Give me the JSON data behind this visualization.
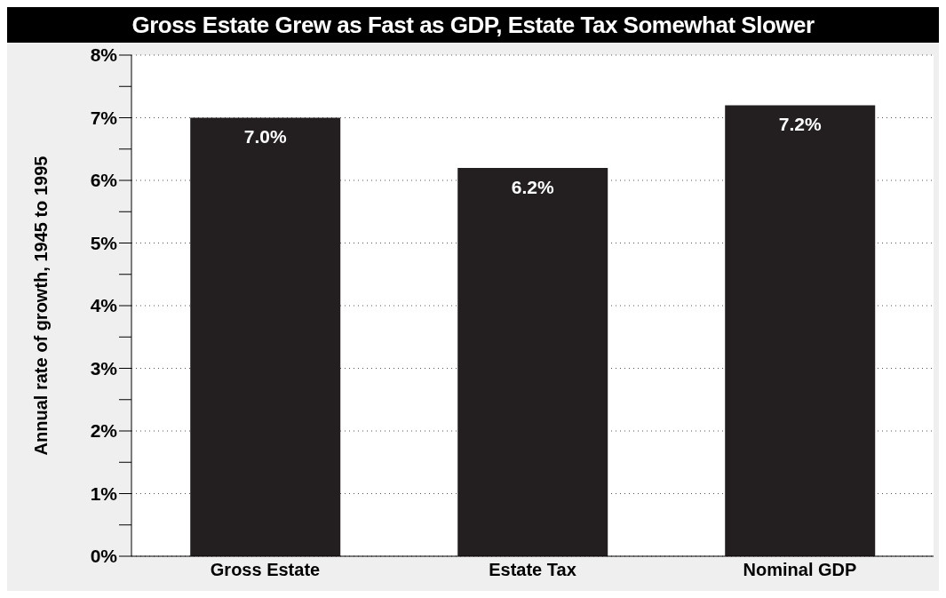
{
  "chart_data": {
    "type": "bar",
    "title": "Gross Estate Grew as Fast as GDP, Estate Tax Somewhat Slower",
    "ylabel": "Annual rate of growth, 1945 to 1995",
    "categories": [
      "Gross Estate",
      "Estate Tax",
      "Nominal GDP"
    ],
    "values": [
      7.0,
      6.2,
      7.2
    ],
    "color": "#231f20",
    "value_labels": [
      "7.0%",
      "6.2%",
      "7.2%"
    ],
    "ylim": [
      0,
      8
    ],
    "yticks": [
      {
        "value": 0,
        "label": "0%"
      },
      {
        "value": 0.5,
        "label": null
      },
      {
        "value": 1,
        "label": "1%"
      },
      {
        "value": 1.5,
        "label": null
      },
      {
        "value": 2,
        "label": "2%"
      },
      {
        "value": 2.5,
        "label": null
      },
      {
        "value": 3,
        "label": "3%"
      },
      {
        "value": 3.5,
        "label": null
      },
      {
        "value": 4,
        "label": "4%"
      },
      {
        "value": 4.5,
        "label": null
      },
      {
        "value": 5,
        "label": "5%"
      },
      {
        "value": 5.5,
        "label": null
      },
      {
        "value": 6,
        "label": "6%"
      },
      {
        "value": 6.5,
        "label": null
      },
      {
        "value": 7,
        "label": "7%"
      },
      {
        "value": 7.5,
        "label": null
      },
      {
        "value": 8,
        "label": "8%"
      }
    ],
    "grid": "y"
  }
}
